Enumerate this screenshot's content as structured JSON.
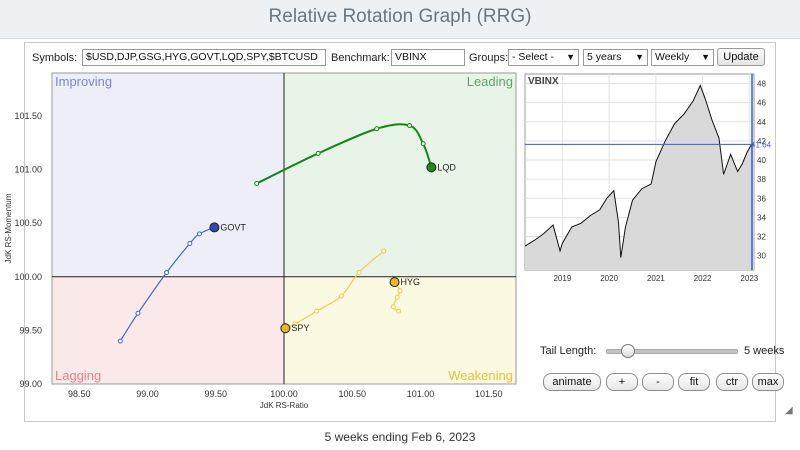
{
  "page": {
    "title": "Relative Rotation Graph (RRG)",
    "footer": "5 weeks ending Feb 6, 2023"
  },
  "controls": {
    "symbols_label": "Symbols:",
    "symbols_value": "$USD,DJP,GSG,HYG,GOVT,LQD,SPY,$BTCUSD",
    "benchmark_label": "Benchmark:",
    "benchmark_value": "VBINX",
    "groups_label": "Groups:",
    "groups_value": "- Select -",
    "period_value": "5 years",
    "frequency_value": "Weekly",
    "update_label": "Update"
  },
  "tail": {
    "label": "Tail Length:",
    "value_label": "5 weeks",
    "value_fraction": 0.12
  },
  "buttons": [
    "animate",
    "+",
    "-",
    "fit",
    "ctr",
    "max"
  ],
  "chart_data": [
    {
      "type": "scatter",
      "title": "",
      "xlabel": "JdK RS-Ratio",
      "ylabel": "JdK RS-Momentum",
      "xlim": [
        98.3,
        101.7
      ],
      "ylim": [
        99.0,
        101.9
      ],
      "xticks": [
        "98.50",
        "99.00",
        "99.50",
        "100.00",
        "100.50",
        "101.00",
        "101.50"
      ],
      "yticks": [
        "99.00",
        "99.50",
        "100.00",
        "100.50",
        "101.00",
        "101.50"
      ],
      "quadrants": [
        {
          "name": "Improving",
          "color": "#7b86d6",
          "fill": "#eeeef9"
        },
        {
          "name": "Leading",
          "color": "#55a860",
          "fill": "#e9f4e9"
        },
        {
          "name": "Lagging",
          "color": "#e08585",
          "fill": "#fbe9e9"
        },
        {
          "name": "Weakening",
          "color": "#e3c337",
          "fill": "#fcf9e3"
        }
      ],
      "series": [
        {
          "name": "LQD",
          "color": "#118811",
          "head_color": "#1f8a1f",
          "x": [
            99.8,
            100.25,
            100.68,
            100.92,
            101.02,
            101.08
          ],
          "y": [
            100.87,
            101.15,
            101.38,
            101.41,
            101.24,
            101.02
          ]
        },
        {
          "name": "GOVT",
          "color": "#4169c7",
          "head_color": "#2e48b8",
          "x": [
            98.8,
            98.93,
            99.14,
            99.31,
            99.38,
            99.49
          ],
          "y": [
            99.4,
            99.66,
            100.04,
            100.31,
            100.4,
            100.46
          ]
        },
        {
          "name": "HYG",
          "color": "#f0cd40",
          "head_color": "#e8b820",
          "x": [
            100.84,
            100.8,
            100.83,
            100.85,
            100.81
          ],
          "y": [
            99.68,
            99.72,
            99.81,
            99.87,
            99.95
          ]
        },
        {
          "name": "SPY",
          "color": "#f0cd40",
          "head_color": "#e8b820",
          "x": [
            100.73,
            100.55,
            100.42,
            100.24,
            100.08,
            100.01
          ],
          "y": [
            100.24,
            100.04,
            99.82,
            99.68,
            99.56,
            99.52
          ]
        }
      ]
    },
    {
      "type": "area",
      "title": "VBINX",
      "xlabel": "",
      "ylabel": "",
      "x_ticks": [
        "2019",
        "2020",
        "2021",
        "2022",
        "2023"
      ],
      "y_ticks": [
        30,
        32,
        34,
        36,
        38,
        40,
        42,
        44,
        46,
        48
      ],
      "ylim": [
        28.5,
        49
      ],
      "current_value_label": "41.64",
      "current_value": 41.64,
      "x_start": 2018.2,
      "x_end": 2023.1,
      "x": [
        2018.2,
        2018.4,
        2018.6,
        2018.8,
        2018.95,
        2019.0,
        2019.2,
        2019.4,
        2019.6,
        2019.8,
        2019.95,
        2020.1,
        2020.2,
        2020.25,
        2020.35,
        2020.5,
        2020.7,
        2020.9,
        2021.0,
        2021.2,
        2021.4,
        2021.6,
        2021.8,
        2021.95,
        2022.05,
        2022.2,
        2022.35,
        2022.45,
        2022.6,
        2022.75,
        2022.85,
        2022.95,
        2023.05,
        2023.1
      ],
      "values": [
        31.0,
        31.6,
        32.3,
        33.2,
        30.5,
        31.3,
        33.0,
        33.4,
        34.2,
        34.8,
        36.0,
        36.8,
        33.5,
        29.8,
        33.0,
        35.8,
        37.0,
        37.5,
        39.8,
        42.0,
        43.8,
        44.8,
        46.2,
        47.8,
        46.5,
        44.2,
        42.3,
        38.5,
        40.6,
        38.8,
        39.6,
        40.8,
        41.64,
        41.64
      ]
    }
  ]
}
